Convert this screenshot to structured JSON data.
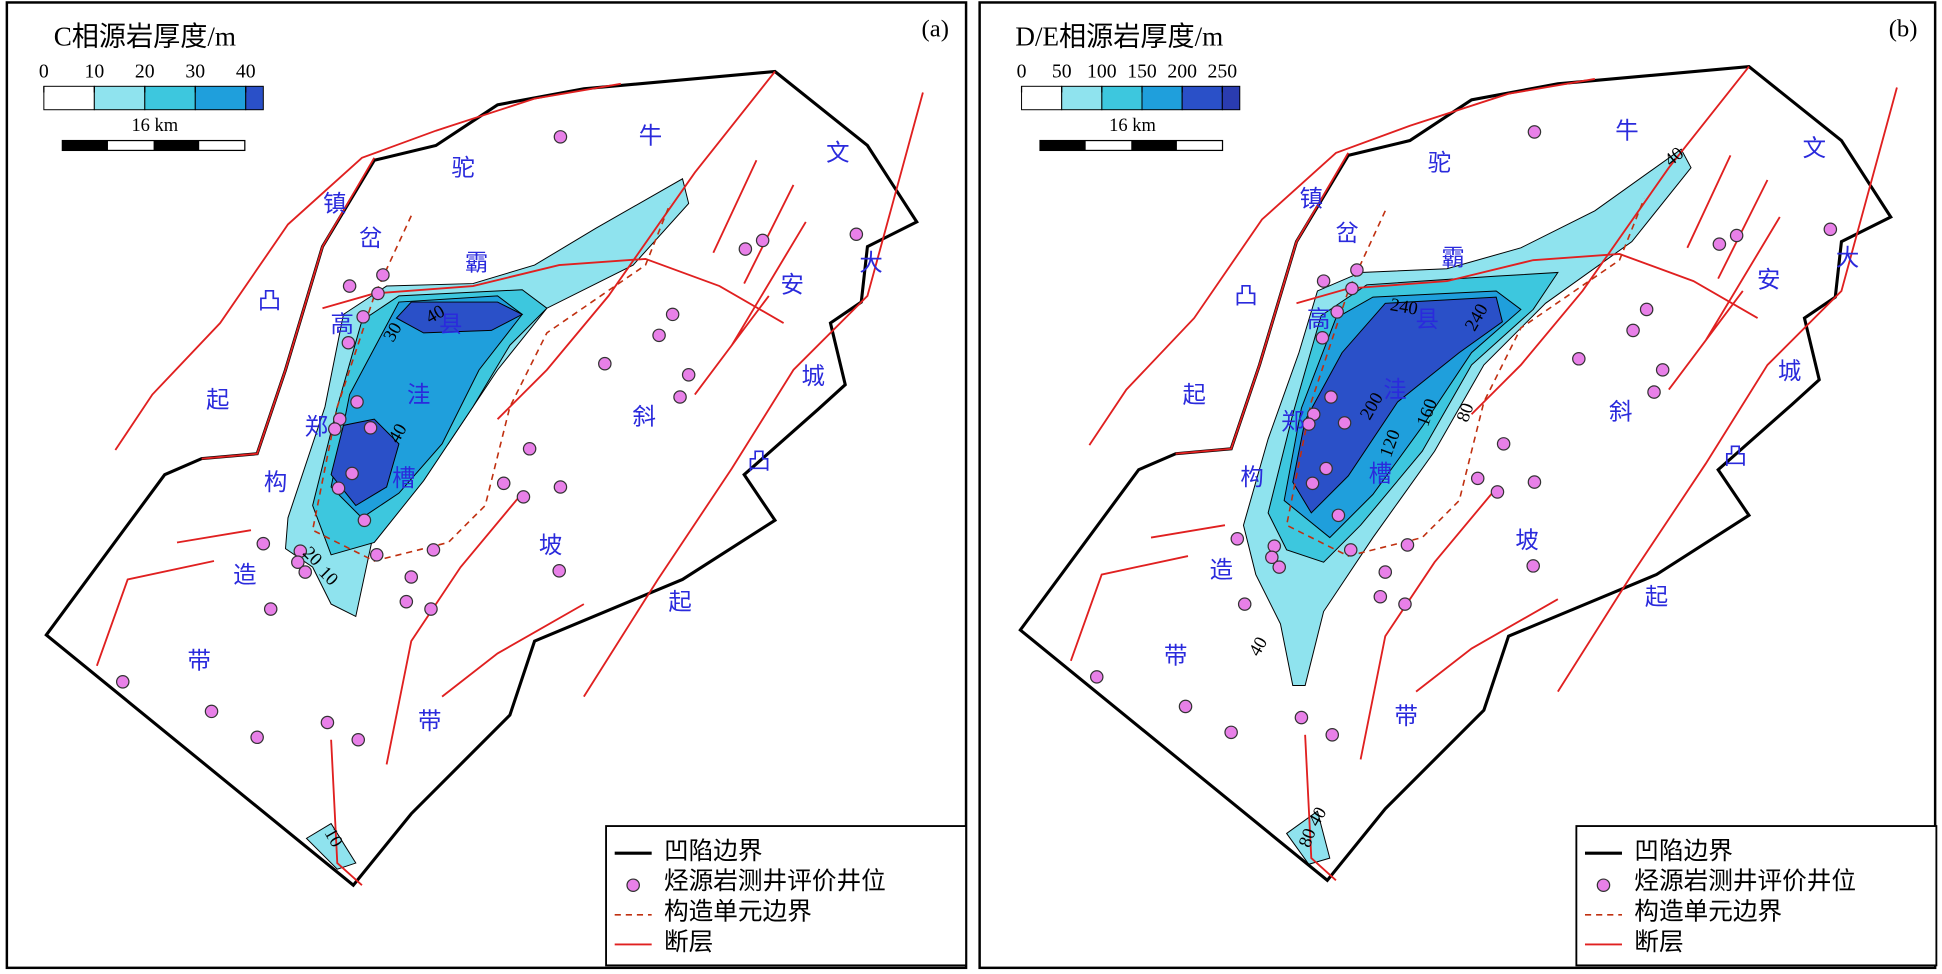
{
  "panels": [
    {
      "label": "(a)",
      "title": "C相源岩厚度/m",
      "colorbar_ticks": [
        0,
        10,
        20,
        30,
        40
      ],
      "scale_label": "16 km",
      "place_labels": [
        "驼",
        "牛",
        "文",
        "镇",
        "岔",
        "霸",
        "大",
        "安",
        "凸",
        "高",
        "县",
        "城",
        "起",
        "洼",
        "斜",
        "郑",
        "凸",
        "构",
        "槽",
        "坡",
        "造",
        "起",
        "带",
        "带"
      ],
      "contour_labels": [
        "40",
        "30",
        "40",
        "20",
        "10",
        "10"
      ]
    },
    {
      "label": "(b)",
      "title": "D/E相源岩厚度/m",
      "colorbar_ticks": [
        0,
        50,
        100,
        150,
        200,
        250
      ],
      "scale_label": "16 km",
      "place_labels": [
        "驼",
        "牛",
        "文",
        "镇",
        "岔",
        "霸",
        "大",
        "安",
        "凸",
        "高",
        "县",
        "城",
        "起",
        "洼",
        "斜",
        "郑",
        "凸",
        "构",
        "槽",
        "坡",
        "造",
        "起",
        "带",
        "带"
      ],
      "contour_labels": [
        "240",
        "240",
        "200",
        "160",
        "120",
        "80",
        "40",
        "40",
        "40",
        "80"
      ]
    }
  ],
  "legend": [
    "凹陷边界",
    "烃源岩测井评价井位",
    "构造单元边界",
    "断层"
  ]
}
